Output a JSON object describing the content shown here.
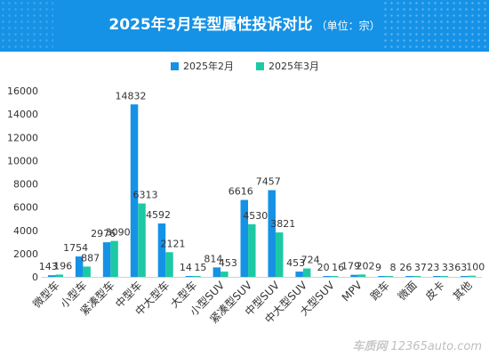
{
  "header": {
    "title": "2025年3月车型属性投诉对比",
    "unit": "（单位：宗）"
  },
  "colors": {
    "header_bg": "#1592e6",
    "series_feb": "#1592e6",
    "series_mar": "#1dc9a4"
  },
  "watermark": {
    "brand": "车质网",
    "domain": "12365auto.com"
  },
  "chart_data": {
    "type": "bar",
    "categories": [
      "微型车",
      "小型车",
      "紧凑型车",
      "中型车",
      "中大型车",
      "大型车",
      "小型SUV",
      "紧凑型SUV",
      "中型SUV",
      "中大型SUV",
      "大型SUV",
      "MPV",
      "跑车",
      "微面",
      "皮卡",
      "其他"
    ],
    "series": [
      {
        "name": "2025年2月",
        "values": [
          143,
          1754,
          2976,
          14832,
          4592,
          14,
          814,
          6616,
          7457,
          453,
          20,
          179,
          9,
          26,
          23,
          63
        ]
      },
      {
        "name": "2025年3月",
        "values": [
          196,
          887,
          3090,
          6313,
          2121,
          15,
          453,
          4530,
          3821,
          724,
          16,
          202,
          8,
          37,
          33,
          100
        ]
      }
    ],
    "ylim": [
      0,
      16000
    ],
    "yticks": [
      0,
      2000,
      4000,
      6000,
      8000,
      10000,
      12000,
      14000,
      16000
    ],
    "ytick_labels": [
      "0",
      "2000",
      "4000",
      "6000",
      "8000",
      "10000",
      "12000",
      "14000",
      "16000"
    ],
    "legend_position": "top-center",
    "grid": false,
    "data_labels": true
  }
}
